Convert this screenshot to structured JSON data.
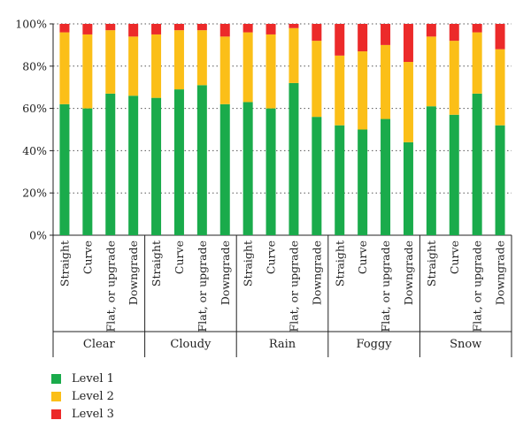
{
  "chart_data": {
    "type": "bar",
    "stacked": true,
    "title": "",
    "xlabel": "",
    "ylabel": "",
    "ylim": [
      0,
      100
    ],
    "yticks": [
      "0%",
      "20%",
      "40%",
      "60%",
      "80%",
      "100%"
    ],
    "ytick_values": [
      0,
      20,
      40,
      60,
      80,
      100
    ],
    "grid": "horizontal dotted",
    "legend_position": "bottom-left",
    "groups": [
      {
        "label": "Clear",
        "categories": [
          "Straight",
          "Curve",
          "Flat, or upgrade",
          "Downgrade"
        ]
      },
      {
        "label": "Cloudy",
        "categories": [
          "Straight",
          "Curve",
          "Flat, or upgrade",
          "Downgrade"
        ]
      },
      {
        "label": "Rain",
        "categories": [
          "Straight",
          "Curve",
          "Flat, or upgrade",
          "Downgrade"
        ]
      },
      {
        "label": "Foggy",
        "categories": [
          "Straight",
          "Curve",
          "Flat, or upgrade",
          "Downgrade"
        ]
      },
      {
        "label": "Snow",
        "categories": [
          "Straight",
          "Curve",
          "Flat, or upgrade",
          "Downgrade"
        ]
      }
    ],
    "series": [
      {
        "name": "Level 1",
        "color": "#1aab4b",
        "values": [
          62,
          60,
          67,
          66,
          65,
          69,
          71,
          62,
          63,
          60,
          72,
          56,
          52,
          50,
          55,
          44,
          61,
          57,
          67,
          52
        ]
      },
      {
        "name": "Level 2",
        "color": "#fbbf18",
        "values": [
          34,
          35,
          30,
          28,
          30,
          28,
          26,
          32,
          33,
          35,
          26,
          36,
          33,
          37,
          35,
          38,
          33,
          35,
          29,
          36
        ]
      },
      {
        "name": "Level 3",
        "color": "#ec2a2a",
        "values": [
          4,
          5,
          3,
          6,
          5,
          3,
          3,
          6,
          4,
          5,
          2,
          8,
          15,
          13,
          10,
          18,
          6,
          8,
          4,
          12
        ]
      }
    ]
  }
}
